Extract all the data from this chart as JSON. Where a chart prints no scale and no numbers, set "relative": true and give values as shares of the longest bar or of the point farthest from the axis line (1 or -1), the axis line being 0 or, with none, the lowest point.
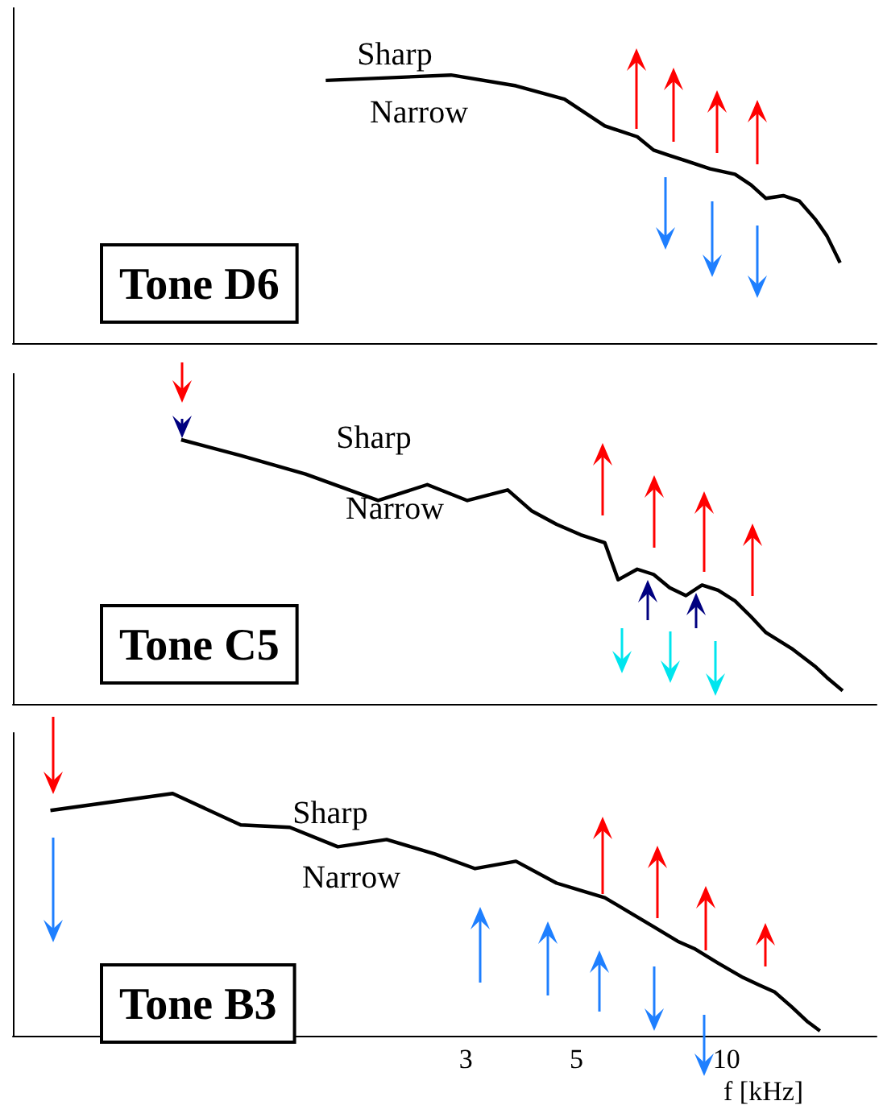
{
  "chart_data": [
    {
      "type": "line",
      "relative": true,
      "color": "#000000",
      "marker": "none",
      "xlim": [
        0.37,
        20
      ],
      "log": "x",
      "xticks": [
        3,
        5,
        10
      ],
      "tick_labels": false,
      "grid": false,
      "x": [
        1.57,
        2.8,
        3.78,
        4.73,
        5.7,
        6.62,
        7.14,
        7.69,
        8.29,
        9.27,
        10.4,
        11.2,
        12.0,
        13.0,
        14.0,
        15.1,
        15.9,
        16.9
      ],
      "values": [
        0.98,
        1,
        0.96,
        0.91,
        0.81,
        0.77,
        0.72,
        0.7,
        0.68,
        0.65,
        0.63,
        0.59,
        0.54,
        0.55,
        0.53,
        0.46,
        0.4,
        0.3
      ],
      "annotations": [
        "Tone D6",
        "Sharp",
        "Narrow"
      ]
    },
    {
      "type": "line",
      "relative": true,
      "color": "#000000",
      "marker": "none",
      "xlim": [
        0.37,
        20
      ],
      "log": "x",
      "xticks": [
        3,
        5,
        10
      ],
      "tick_labels": false,
      "grid": false,
      "x": [
        0.805,
        1.06,
        1.43,
        2.0,
        2.51,
        3.02,
        3.64,
        4.07,
        4.56,
        5.1,
        5.7,
        6.06,
        6.62,
        7.14,
        7.69,
        8.29,
        8.93,
        9.62,
        10.4,
        11.2,
        12.0,
        13.5,
        15.1,
        15.9,
        17.1
      ],
      "values": [
        1,
        0.94,
        0.87,
        0.77,
        0.83,
        0.77,
        0.81,
        0.73,
        0.68,
        0.64,
        0.61,
        0.47,
        0.51,
        0.49,
        0.44,
        0.41,
        0.45,
        0.43,
        0.39,
        0.33,
        0.27,
        0.21,
        0.14,
        0.1,
        0.05
      ],
      "annotations": [
        "Tone C5",
        "Sharp",
        "Narrow"
      ]
    },
    {
      "type": "line",
      "relative": true,
      "color": "#000000",
      "marker": "none",
      "xlim": [
        0.37,
        20
      ],
      "log": "x",
      "xticks": [
        3,
        5,
        10
      ],
      "tick_labels": "x",
      "xlabel": "f [kHz]",
      "grid": false,
      "x": [
        0.44,
        0.774,
        1.06,
        1.33,
        1.66,
        2.08,
        2.6,
        3.13,
        3.78,
        4.56,
        5.1,
        5.7,
        6.38,
        7.14,
        7.98,
        8.61,
        9.62,
        10.8,
        11.6,
        12.5,
        13.5,
        14.5,
        15.4
      ],
      "values": [
        0.93,
        1,
        0.87,
        0.86,
        0.78,
        0.81,
        0.75,
        0.69,
        0.72,
        0.63,
        0.6,
        0.57,
        0.51,
        0.45,
        0.39,
        0.36,
        0.3,
        0.24,
        0.21,
        0.18,
        0.12,
        0.06,
        0.02
      ],
      "annotations": [
        "Tone B3",
        "Sharp",
        "Narrow"
      ]
    }
  ]
}
